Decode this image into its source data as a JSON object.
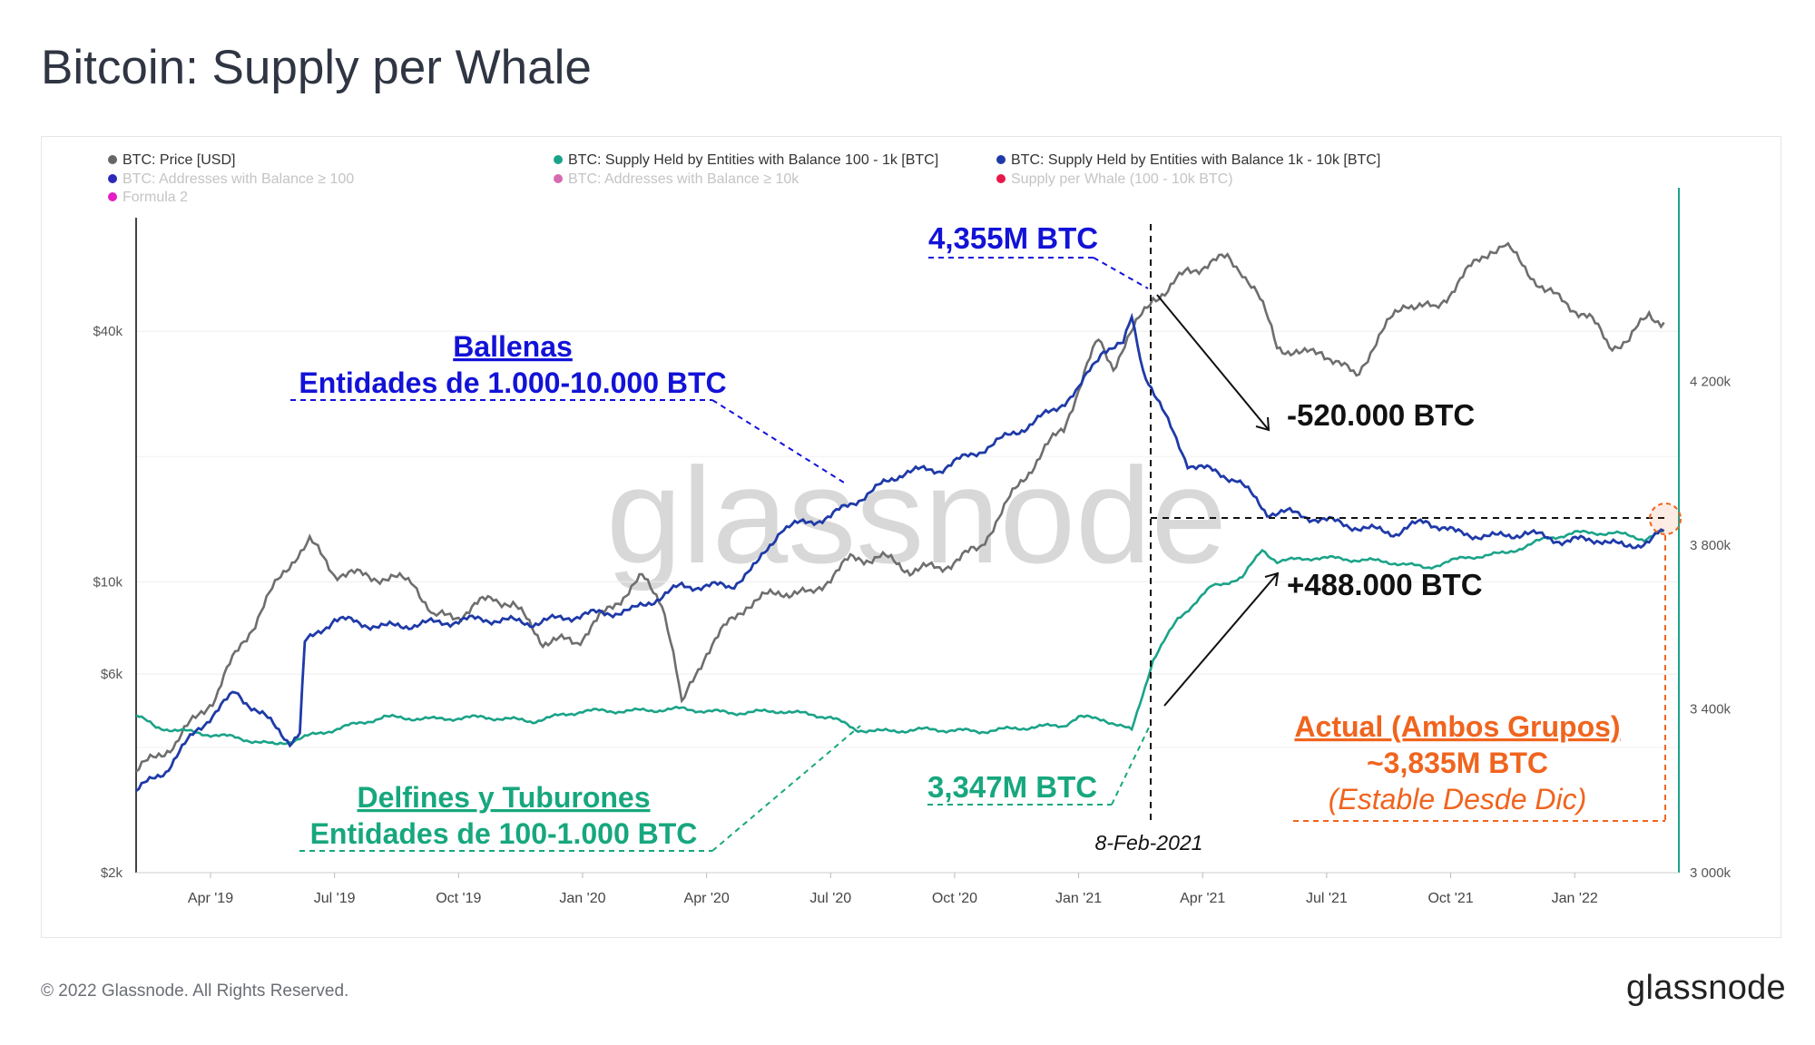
{
  "header": {
    "title": "Bitcoin: Supply per Whale"
  },
  "footer": {
    "copyright": "© 2022 Glassnode. All Rights Reserved.",
    "logo": "glassnode"
  },
  "watermark": "glassnode",
  "legend": [
    {
      "label": "BTC: Price [USD]",
      "color": "#666666",
      "active": true
    },
    {
      "label": "BTC: Supply Held by Entities with Balance 100 - 1k [BTC]",
      "color": "#1aa388",
      "active": true
    },
    {
      "label": "BTC: Supply Held by Entities with Balance 1k - 10k [BTC]",
      "color": "#1f3aa8",
      "active": true
    },
    {
      "label": "BTC: Addresses with Balance ≥ 100",
      "color": "#2b2bb8",
      "active": false
    },
    {
      "label": "BTC: Addresses with Balance ≥ 10k",
      "color": "#d66bb0",
      "active": false
    },
    {
      "label": "Supply per Whale (100 - 10k BTC)",
      "color": "#e8174a",
      "active": false
    },
    {
      "label": "Formula 2",
      "color": "#e61cc8",
      "active": false
    }
  ],
  "annotations": {
    "whale_peak": "4,355M BTC",
    "whales_title": "Ballenas",
    "whales_subtitle": "Entidades de 1.000-10.000 BTC",
    "whale_change": "-520.000 BTC",
    "dolphin_change": "+488.000 BTC",
    "dolphin_low": "3,347M BTC",
    "dolphins_title": "Delfines y Tuburones",
    "dolphins_subtitle": "Entidades de 100-1.000 BTC",
    "date_marker": "8-Feb-2021",
    "current_title": "Actual (Ambos Grupos)",
    "current_value": "~3,835M BTC",
    "current_note": "(Estable Desde Dic)"
  },
  "colors": {
    "price": "#6e6e6e",
    "dolphins": "#1aa388",
    "whales": "#1f3aa8",
    "dolphin_text": "#17a77e",
    "whale_text": "#1212d8",
    "current_text": "#f0641e"
  },
  "chart_data": {
    "type": "line",
    "x_ticks": [
      "Apr '19",
      "Jul '19",
      "Oct '19",
      "Jan '20",
      "Apr '20",
      "Jul '20",
      "Oct '20",
      "Jan '21",
      "Apr '21",
      "Jul '21",
      "Oct '21",
      "Jan '22"
    ],
    "x_range": [
      2019.1,
      2022.21
    ],
    "left_axis": {
      "scale": "log",
      "ticks": [
        "$2k",
        "$6k",
        "$10k",
        "$40k"
      ],
      "tick_values": [
        2000,
        6000,
        10000,
        40000
      ],
      "range": [
        2000,
        75000
      ]
    },
    "right_axis": {
      "scale": "linear",
      "ticks": [
        "3 000k",
        "3 400k",
        "3 800k",
        "4 200k"
      ],
      "tick_values": [
        3000,
        3400,
        3800,
        4200
      ],
      "range": [
        3000,
        4600
      ],
      "unit": "thousand BTC"
    },
    "series": [
      {
        "name": "BTC: Price [USD]",
        "axis": "left",
        "points": [
          [
            2019.1,
            3500
          ],
          [
            2019.18,
            4100
          ],
          [
            2019.26,
            5300
          ],
          [
            2019.34,
            8000
          ],
          [
            2019.42,
            11500
          ],
          [
            2019.45,
            12500
          ],
          [
            2019.5,
            10500
          ],
          [
            2019.58,
            10300
          ],
          [
            2019.66,
            10000
          ],
          [
            2019.7,
            8200
          ],
          [
            2019.75,
            8300
          ],
          [
            2019.82,
            9200
          ],
          [
            2019.86,
            8800
          ],
          [
            2019.92,
            7200
          ],
          [
            2019.99,
            7200
          ],
          [
            2020.05,
            8500
          ],
          [
            2020.12,
            10200
          ],
          [
            2020.16,
            9000
          ],
          [
            2020.2,
            5000
          ],
          [
            2020.25,
            6800
          ],
          [
            2020.33,
            8800
          ],
          [
            2020.4,
            9500
          ],
          [
            2020.46,
            9300
          ],
          [
            2020.54,
            11300
          ],
          [
            2020.6,
            11500
          ],
          [
            2020.66,
            10700
          ],
          [
            2020.72,
            10800
          ],
          [
            2020.8,
            12000
          ],
          [
            2020.85,
            15000
          ],
          [
            2020.9,
            18500
          ],
          [
            2020.97,
            23500
          ],
          [
            2021.0,
            29000
          ],
          [
            2021.04,
            38000
          ],
          [
            2021.07,
            33000
          ],
          [
            2021.11,
            40000
          ],
          [
            2021.15,
            48500
          ],
          [
            2021.18,
            50000
          ],
          [
            2021.22,
            56000
          ],
          [
            2021.26,
            58000
          ],
          [
            2021.3,
            60000
          ],
          [
            2021.33,
            56000
          ],
          [
            2021.36,
            49000
          ],
          [
            2021.4,
            37000
          ],
          [
            2021.45,
            35000
          ],
          [
            2021.49,
            36000
          ],
          [
            2021.53,
            33000
          ],
          [
            2021.56,
            31000
          ],
          [
            2021.6,
            38000
          ],
          [
            2021.66,
            47000
          ],
          [
            2021.72,
            45000
          ],
          [
            2021.78,
            55000
          ],
          [
            2021.83,
            63000
          ],
          [
            2021.86,
            64000
          ],
          [
            2021.9,
            57000
          ],
          [
            2021.94,
            50000
          ],
          [
            2021.98,
            47000
          ],
          [
            2022.03,
            43000
          ],
          [
            2022.07,
            37000
          ],
          [
            2022.11,
            38000
          ],
          [
            2022.15,
            44000
          ],
          [
            2022.18,
            42000
          ]
        ]
      },
      {
        "name": "BTC: Supply Held by Entities with Balance 100 - 1k [BTC]",
        "axis": "right",
        "points": [
          [
            2019.1,
            3385
          ],
          [
            2019.14,
            3355
          ],
          [
            2019.2,
            3345
          ],
          [
            2019.3,
            3330
          ],
          [
            2019.38,
            3312
          ],
          [
            2019.5,
            3350
          ],
          [
            2019.6,
            3380
          ],
          [
            2019.7,
            3375
          ],
          [
            2019.8,
            3380
          ],
          [
            2019.9,
            3370
          ],
          [
            2020.0,
            3395
          ],
          [
            2020.1,
            3395
          ],
          [
            2020.2,
            3400
          ],
          [
            2020.3,
            3390
          ],
          [
            2020.4,
            3395
          ],
          [
            2020.5,
            3380
          ],
          [
            2020.55,
            3350
          ],
          [
            2020.6,
            3345
          ],
          [
            2020.7,
            3350
          ],
          [
            2020.8,
            3345
          ],
          [
            2020.9,
            3355
          ],
          [
            2020.97,
            3360
          ],
          [
            2021.0,
            3380
          ],
          [
            2021.05,
            3375
          ],
          [
            2021.107,
            3347
          ],
          [
            2021.15,
            3520
          ],
          [
            2021.2,
            3620
          ],
          [
            2021.27,
            3700
          ],
          [
            2021.33,
            3720
          ],
          [
            2021.37,
            3790
          ],
          [
            2021.4,
            3760
          ],
          [
            2021.48,
            3770
          ],
          [
            2021.55,
            3765
          ],
          [
            2021.62,
            3760
          ],
          [
            2021.7,
            3745
          ],
          [
            2021.78,
            3770
          ],
          [
            2021.86,
            3780
          ],
          [
            2021.94,
            3815
          ],
          [
            2022.0,
            3830
          ],
          [
            2022.08,
            3830
          ],
          [
            2022.14,
            3815
          ],
          [
            2022.18,
            3835
          ]
        ]
      },
      {
        "name": "BTC: Supply Held by Entities with Balance 1k - 10k [BTC]",
        "axis": "right",
        "points": [
          [
            2019.1,
            3200
          ],
          [
            2019.16,
            3250
          ],
          [
            2019.22,
            3345
          ],
          [
            2019.3,
            3440
          ],
          [
            2019.36,
            3380
          ],
          [
            2019.41,
            3320
          ],
          [
            2019.43,
            3340
          ],
          [
            2019.44,
            3560
          ],
          [
            2019.5,
            3620
          ],
          [
            2019.6,
            3600
          ],
          [
            2019.7,
            3610
          ],
          [
            2019.8,
            3620
          ],
          [
            2019.9,
            3610
          ],
          [
            2020.0,
            3630
          ],
          [
            2020.1,
            3640
          ],
          [
            2020.2,
            3700
          ],
          [
            2020.3,
            3700
          ],
          [
            2020.35,
            3750
          ],
          [
            2020.4,
            3840
          ],
          [
            2020.5,
            3870
          ],
          [
            2020.58,
            3930
          ],
          [
            2020.65,
            3980
          ],
          [
            2020.72,
            3985
          ],
          [
            2020.8,
            4030
          ],
          [
            2020.88,
            4080
          ],
          [
            2020.95,
            4130
          ],
          [
            2021.0,
            4180
          ],
          [
            2021.05,
            4280
          ],
          [
            2021.09,
            4290
          ],
          [
            2021.107,
            4355
          ],
          [
            2021.13,
            4230
          ],
          [
            2021.18,
            4100
          ],
          [
            2021.22,
            4000
          ],
          [
            2021.27,
            3980
          ],
          [
            2021.32,
            3960
          ],
          [
            2021.38,
            3880
          ],
          [
            2021.42,
            3880
          ],
          [
            2021.5,
            3860
          ],
          [
            2021.58,
            3840
          ],
          [
            2021.64,
            3830
          ],
          [
            2021.7,
            3860
          ],
          [
            2021.76,
            3830
          ],
          [
            2021.84,
            3820
          ],
          [
            2021.9,
            3830
          ],
          [
            2021.98,
            3810
          ],
          [
            2022.05,
            3815
          ],
          [
            2022.1,
            3795
          ],
          [
            2022.15,
            3810
          ],
          [
            2022.18,
            3835
          ]
        ]
      }
    ]
  }
}
